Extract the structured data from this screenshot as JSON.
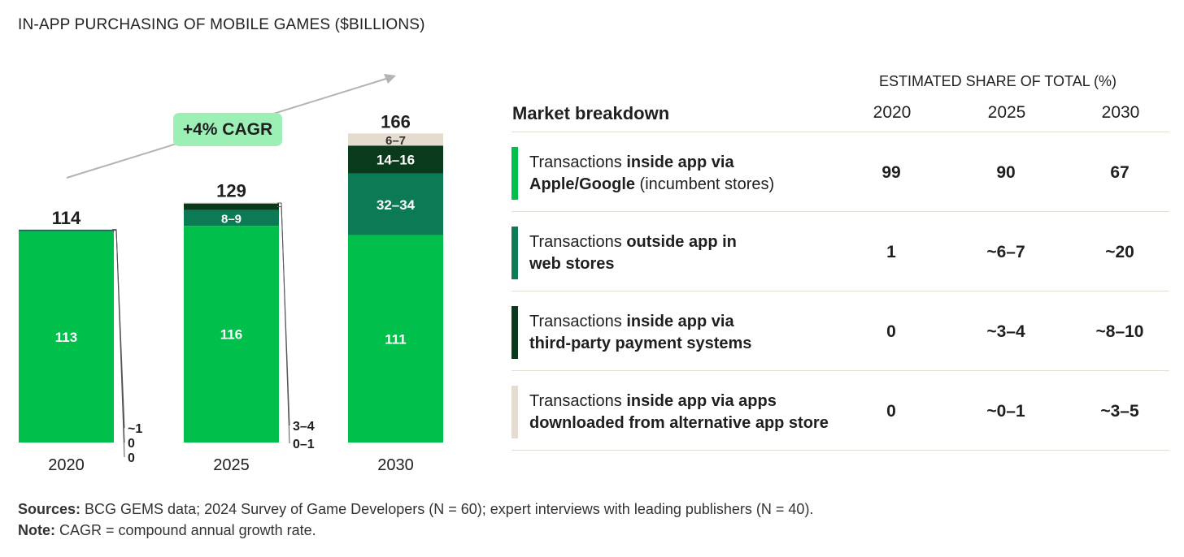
{
  "chart_data": {
    "type": "stacked-bar",
    "title": "IN-APP PURCHASING OF MOBILE GAMES ($BILLIONS)",
    "categories": [
      "2020",
      "2025",
      "2030"
    ],
    "totals": [
      "114",
      "129",
      "166"
    ],
    "series": [
      {
        "name": "Inside app via Apple/Google (incumbent stores)",
        "color": "#00c04b",
        "values": [
          113,
          116,
          111
        ],
        "labels": [
          "113",
          "116",
          "111"
        ]
      },
      {
        "name": "Outside app in web stores",
        "color": "#0d7a56",
        "values": [
          1,
          8.5,
          33
        ],
        "labels": [
          "~1",
          "8–9",
          "32–34"
        ]
      },
      {
        "name": "Inside app via third-party payment systems",
        "color": "#0a3a1c",
        "values": [
          0,
          3.5,
          15
        ],
        "labels": [
          "0",
          "3–4",
          "14–16"
        ]
      },
      {
        "name": "Inside app via apps downloaded from alternative app store",
        "color": "#e5dcd0",
        "values": [
          0,
          0.5,
          6.5
        ],
        "labels": [
          "0",
          "0–1",
          "6–7"
        ]
      }
    ],
    "annotation": "+4% CAGR"
  },
  "table": {
    "header_title": "ESTIMATED SHARE OF TOTAL (%)",
    "column_label": "Market breakdown",
    "years": [
      "2020",
      "2025",
      "2030"
    ],
    "rows": [
      {
        "color": "#00c04b",
        "pre": "Transactions ",
        "bold": "inside app via",
        "line2_pre": "",
        "line2_bold": "Apple/Google",
        "line2_rest": " (incumbent stores)",
        "values": [
          "99",
          "90",
          "67"
        ]
      },
      {
        "color": "#0d7a56",
        "pre": "Transactions ",
        "bold": "outside app in",
        "line2_pre": "",
        "line2_bold": "web stores",
        "line2_rest": "",
        "values": [
          "1",
          "~6–7",
          "~20"
        ]
      },
      {
        "color": "#0a3a1c",
        "pre": "Transactions ",
        "bold": "inside app via",
        "line2_pre": "",
        "line2_bold": "third-party payment systems",
        "line2_rest": "",
        "values": [
          "0",
          "~3–4",
          "~8–10"
        ]
      },
      {
        "color": "#e5dcd0",
        "pre": "Transactions ",
        "bold": "inside app via apps",
        "line2_pre": "",
        "line2_bold": "downloaded from alternative app store",
        "line2_rest": "",
        "values": [
          "0",
          "~0–1",
          "~3–5"
        ]
      }
    ]
  },
  "footer": {
    "sources_label": "Sources:",
    "sources_text": " BCG GEMS data; 2024 Survey of Game Developers (N = 60); expert interviews with leading publishers (N = 40).",
    "note_label": "Note:",
    "note_text": " CAGR = compound annual growth rate."
  }
}
